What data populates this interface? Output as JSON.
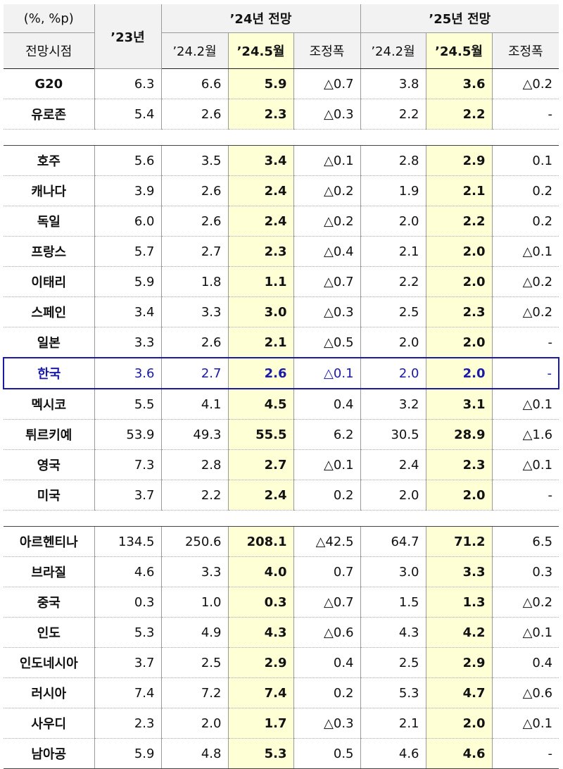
{
  "header": {
    "unit": "(%, %p)",
    "basis": "전망시점",
    "y23": "’23년",
    "y24_group": "’24년 전망",
    "y25_group": "’25년 전망",
    "sub": [
      "’24.2월",
      "’24.5월",
      "조정폭",
      "’24.2월",
      "’24.5월",
      "조정폭"
    ]
  },
  "sections": [
    {
      "rows": [
        {
          "name": "G20",
          "y23": "6.3",
          "y24_feb": "6.6",
          "y24_may": "5.9",
          "y24_adj": "△0.7",
          "y25_feb": "3.8",
          "y25_may": "3.6",
          "y25_adj": "△0.2"
        },
        {
          "name": "유로존",
          "y23": "5.4",
          "y24_feb": "2.6",
          "y24_may": "2.3",
          "y24_adj": "△0.3",
          "y25_feb": "2.2",
          "y25_may": "2.2",
          "y25_adj": "-"
        }
      ]
    },
    {
      "rows": [
        {
          "name": "호주",
          "y23": "5.6",
          "y24_feb": "3.5",
          "y24_may": "3.4",
          "y24_adj": "△0.1",
          "y25_feb": "2.8",
          "y25_may": "2.9",
          "y25_adj": "0.1"
        },
        {
          "name": "캐나다",
          "y23": "3.9",
          "y24_feb": "2.6",
          "y24_may": "2.4",
          "y24_adj": "△0.2",
          "y25_feb": "1.9",
          "y25_may": "2.1",
          "y25_adj": "0.2"
        },
        {
          "name": "독일",
          "y23": "6.0",
          "y24_feb": "2.6",
          "y24_may": "2.4",
          "y24_adj": "△0.2",
          "y25_feb": "2.0",
          "y25_may": "2.2",
          "y25_adj": "0.2"
        },
        {
          "name": "프랑스",
          "y23": "5.7",
          "y24_feb": "2.7",
          "y24_may": "2.3",
          "y24_adj": "△0.4",
          "y25_feb": "2.1",
          "y25_may": "2.0",
          "y25_adj": "△0.1"
        },
        {
          "name": "이태리",
          "y23": "5.9",
          "y24_feb": "1.8",
          "y24_may": "1.1",
          "y24_adj": "△0.7",
          "y25_feb": "2.2",
          "y25_may": "2.0",
          "y25_adj": "△0.2"
        },
        {
          "name": "스페인",
          "y23": "3.4",
          "y24_feb": "3.3",
          "y24_may": "3.0",
          "y24_adj": "△0.3",
          "y25_feb": "2.5",
          "y25_may": "2.3",
          "y25_adj": "△0.2"
        },
        {
          "name": "일본",
          "y23": "3.3",
          "y24_feb": "2.6",
          "y24_may": "2.1",
          "y24_adj": "△0.5",
          "y25_feb": "2.0",
          "y25_may": "2.0",
          "y25_adj": "-"
        },
        {
          "name": "한국",
          "y23": "3.6",
          "y24_feb": "2.7",
          "y24_may": "2.6",
          "y24_adj": "△0.1",
          "y25_feb": "2.0",
          "y25_may": "2.0",
          "y25_adj": "-"
        },
        {
          "name": "멕시코",
          "y23": "5.5",
          "y24_feb": "4.1",
          "y24_may": "4.5",
          "y24_adj": "0.4",
          "y25_feb": "3.2",
          "y25_may": "3.1",
          "y25_adj": "△0.1"
        },
        {
          "name": "튀르키예",
          "y23": "53.9",
          "y24_feb": "49.3",
          "y24_may": "55.5",
          "y24_adj": "6.2",
          "y25_feb": "30.5",
          "y25_may": "28.9",
          "y25_adj": "△1.6"
        },
        {
          "name": "영국",
          "y23": "7.3",
          "y24_feb": "2.8",
          "y24_may": "2.7",
          "y24_adj": "△0.1",
          "y25_feb": "2.4",
          "y25_may": "2.3",
          "y25_adj": "△0.1"
        },
        {
          "name": "미국",
          "y23": "3.7",
          "y24_feb": "2.2",
          "y24_may": "2.4",
          "y24_adj": "0.2",
          "y25_feb": "2.0",
          "y25_may": "2.0",
          "y25_adj": "-"
        }
      ]
    },
    {
      "rows": [
        {
          "name": "아르헨티나",
          "y23": "134.5",
          "y24_feb": "250.6",
          "y24_may": "208.1",
          "y24_adj": "△42.5",
          "y25_feb": "64.7",
          "y25_may": "71.2",
          "y25_adj": "6.5"
        },
        {
          "name": "브라질",
          "y23": "4.6",
          "y24_feb": "3.3",
          "y24_may": "4.0",
          "y24_adj": "0.7",
          "y25_feb": "3.0",
          "y25_may": "3.3",
          "y25_adj": "0.3"
        },
        {
          "name": "중국",
          "y23": "0.3",
          "y24_feb": "1.0",
          "y24_may": "0.3",
          "y24_adj": "△0.7",
          "y25_feb": "1.5",
          "y25_may": "1.3",
          "y25_adj": "△0.2"
        },
        {
          "name": "인도",
          "y23": "5.3",
          "y24_feb": "4.9",
          "y24_may": "4.3",
          "y24_adj": "△0.6",
          "y25_feb": "4.3",
          "y25_may": "4.2",
          "y25_adj": "△0.1"
        },
        {
          "name": "인도네시아",
          "y23": "3.7",
          "y24_feb": "2.5",
          "y24_may": "2.9",
          "y24_adj": "0.4",
          "y25_feb": "2.5",
          "y25_may": "2.9",
          "y25_adj": "0.4"
        },
        {
          "name": "러시아",
          "y23": "7.4",
          "y24_feb": "7.2",
          "y24_may": "7.4",
          "y24_adj": "0.2",
          "y25_feb": "5.3",
          "y25_may": "4.7",
          "y25_adj": "△0.6"
        },
        {
          "name": "사우디",
          "y23": "2.3",
          "y24_feb": "2.0",
          "y24_may": "1.7",
          "y24_adj": "△0.3",
          "y25_feb": "2.1",
          "y25_may": "2.0",
          "y25_adj": "△0.1"
        },
        {
          "name": "남아공",
          "y23": "5.9",
          "y24_feb": "4.8",
          "y24_may": "5.3",
          "y24_adj": "0.5",
          "y25_feb": "4.6",
          "y25_may": "4.6",
          "y25_adj": "-"
        }
      ]
    }
  ],
  "highlight": {
    "row_color": "#1a1aa8",
    "column_bg": "#ffffd6",
    "header_bg": "#f2f2f2"
  }
}
